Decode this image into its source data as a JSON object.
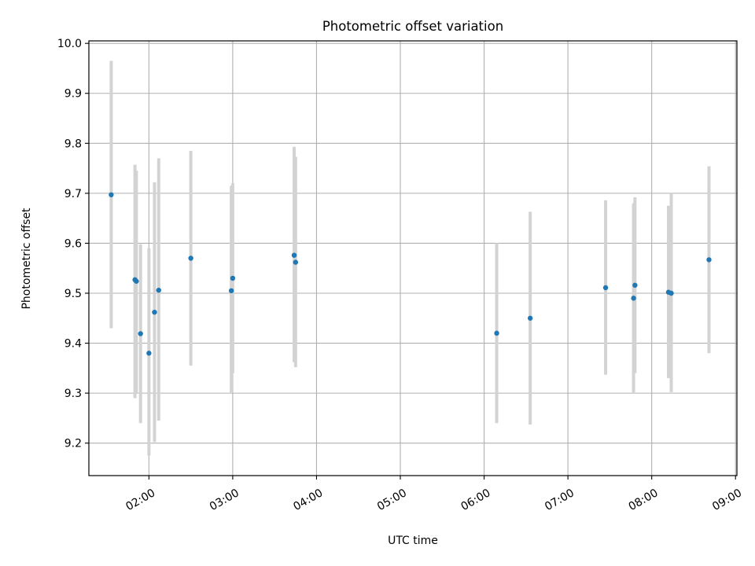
{
  "chart_data": {
    "type": "scatter",
    "title": "Photometric offset variation",
    "xlabel": "UTC time",
    "ylabel": "Photometric offset",
    "x_axis": "time",
    "x_ticks": [
      "02:00",
      "03:00",
      "04:00",
      "05:00",
      "06:00",
      "07:00",
      "08:00",
      "09:00"
    ],
    "xlim": [
      "01:17",
      "09:01"
    ],
    "ylim": [
      9.135,
      10.005
    ],
    "y_ticks": [
      "9.2",
      "9.3",
      "9.4",
      "9.5",
      "9.6",
      "9.7",
      "9.8",
      "9.9",
      "10.0"
    ],
    "grid": true,
    "errorbars": true,
    "points": [
      {
        "x": "01:33",
        "y": 9.697,
        "err": [
          9.43,
          9.965
        ]
      },
      {
        "x": "01:50",
        "y": 9.527,
        "err": [
          9.29,
          9.757
        ]
      },
      {
        "x": "01:51",
        "y": 9.524,
        "err": [
          9.3,
          9.745
        ]
      },
      {
        "x": "01:54",
        "y": 9.419,
        "err": [
          9.24,
          9.598
        ]
      },
      {
        "x": "02:00",
        "y": 9.38,
        "err": [
          9.175,
          9.59
        ]
      },
      {
        "x": "02:04",
        "y": 9.462,
        "err": [
          9.202,
          9.722
        ]
      },
      {
        "x": "02:07",
        "y": 9.506,
        "err": [
          9.245,
          9.77
        ]
      },
      {
        "x": "02:30",
        "y": 9.57,
        "err": [
          9.355,
          9.785
        ]
      },
      {
        "x": "02:59",
        "y": 9.505,
        "err": [
          9.3,
          9.715
        ]
      },
      {
        "x": "03:00",
        "y": 9.53,
        "err": [
          9.34,
          9.72
        ]
      },
      {
        "x": "03:44",
        "y": 9.576,
        "err": [
          9.362,
          9.793
        ]
      },
      {
        "x": "03:45",
        "y": 9.562,
        "err": [
          9.352,
          9.773
        ]
      },
      {
        "x": "06:09",
        "y": 9.42,
        "err": [
          9.24,
          9.6
        ]
      },
      {
        "x": "06:33",
        "y": 9.45,
        "err": [
          9.237,
          9.663
        ]
      },
      {
        "x": "07:27",
        "y": 9.511,
        "err": [
          9.337,
          9.686
        ]
      },
      {
        "x": "07:47",
        "y": 9.49,
        "err": [
          9.3,
          9.68
        ]
      },
      {
        "x": "07:48",
        "y": 9.516,
        "err": [
          9.34,
          9.692
        ]
      },
      {
        "x": "08:12",
        "y": 9.502,
        "err": [
          9.33,
          9.675
        ]
      },
      {
        "x": "08:14",
        "y": 9.5,
        "err": [
          9.302,
          9.7
        ]
      },
      {
        "x": "08:41",
        "y": 9.567,
        "err": [
          9.38,
          9.754
        ]
      }
    ],
    "colors": {
      "point": "#1f77b4",
      "errorbar": "#d3d3d3",
      "grid": "#b0b0b0"
    }
  }
}
